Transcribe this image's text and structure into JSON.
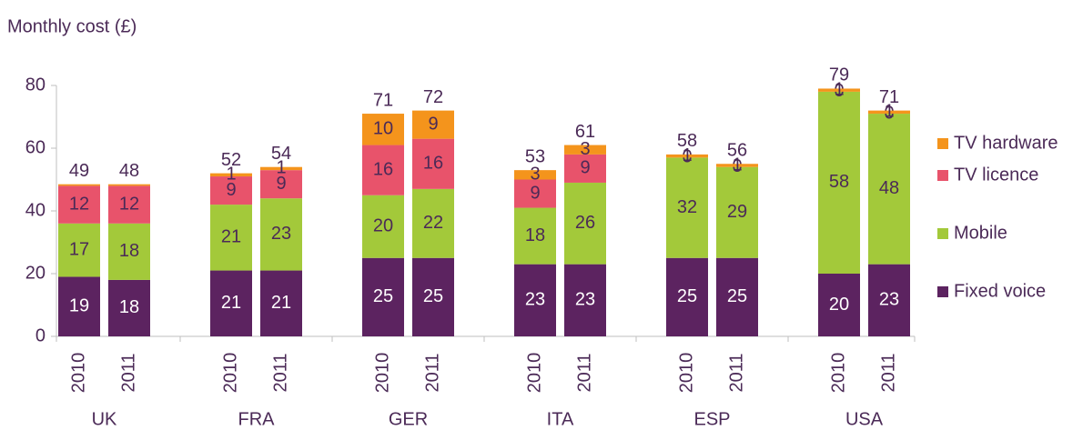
{
  "chart_data": {
    "type": "stacked_bar",
    "y_axis_label": "Monthly cost (£)",
    "groups": [
      "UK",
      "FRA",
      "GER",
      "ITA",
      "ESP",
      "USA"
    ],
    "categories": [
      "2010",
      "2011",
      "2010",
      "2011",
      "2010",
      "2011",
      "2010",
      "2011",
      "2010",
      "2011",
      "2010",
      "2011"
    ],
    "series": [
      {
        "name": "Fixed voice",
        "color": "#5c2360",
        "label_color": "#ffffff",
        "values": [
          19,
          18,
          21,
          21,
          25,
          25,
          23,
          23,
          25,
          25,
          20,
          23
        ]
      },
      {
        "name": "Mobile",
        "color": "#a3c93a",
        "label_color": "#4b2a57",
        "values": [
          17,
          18,
          21,
          23,
          20,
          22,
          18,
          26,
          32,
          29,
          58,
          48
        ]
      },
      {
        "name": "TV licence",
        "color": "#e8536b",
        "label_color": "#4b2a57",
        "values": [
          12,
          12,
          9,
          9,
          16,
          16,
          9,
          9,
          0,
          0,
          0,
          0
        ]
      },
      {
        "name": "TV hardware",
        "color": "#f4941c",
        "label_color": "#4b2a57",
        "values": [
          0.5,
          0.5,
          1,
          1,
          10,
          9,
          3,
          3,
          1,
          1,
          1,
          1
        ],
        "value_labels": [
          null,
          null,
          "1",
          "1",
          "10",
          "9",
          "3",
          "3",
          "1",
          "1",
          "1",
          "1"
        ]
      }
    ],
    "totals": [
      49,
      48,
      52,
      54,
      71,
      72,
      53,
      61,
      58,
      56,
      79,
      71
    ],
    "ylim": [
      0,
      80
    ],
    "yticks": [
      0,
      20,
      40,
      60,
      80
    ],
    "grid": false,
    "legend": "right"
  }
}
